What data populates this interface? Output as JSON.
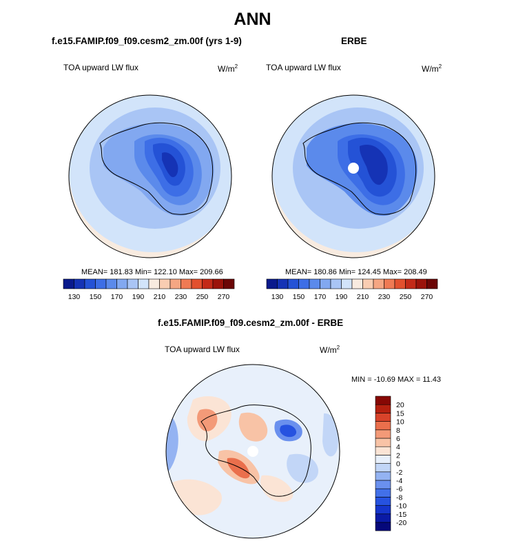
{
  "figure": {
    "title": "ANN",
    "panel1": {
      "title": "f.e15.FAMIP.f09_f09.cesm2_zm.00f (yrs 1-9)",
      "variable": "TOA upward LW flux",
      "units_base": "W/m",
      "units_exp": "2",
      "stats": "MEAN= 181.83  Min= 122.10  Max= 209.66"
    },
    "panel2": {
      "title": "ERBE",
      "variable": "TOA upward LW flux",
      "units_base": "W/m",
      "units_exp": "2",
      "stats": "MEAN= 180.86  Min= 124.45  Max= 208.49"
    },
    "panel3": {
      "title": "f.e15.FAMIP.f09_f09.cesm2_zm.00f - ERBE",
      "variable": "TOA upward LW flux",
      "units_base": "W/m",
      "units_exp": "2",
      "stats": "MIN = -10.69 MAX =  11.43"
    }
  },
  "chart_data": [
    {
      "type": "heatmap",
      "projection": "south-polar-stereographic",
      "title": "f.e15.FAMIP.f09_f09.cesm2_zm.00f (yrs 1-9)",
      "variable": "TOA upward LW flux",
      "units": "W/m2",
      "mean": 181.83,
      "min": 122.1,
      "max": 209.66,
      "colorbar_levels": [
        130,
        140,
        150,
        160,
        170,
        180,
        190,
        200,
        210,
        220,
        230,
        240,
        250,
        260,
        270
      ],
      "colorbar_tick_labels": [
        "130",
        "150",
        "170",
        "190",
        "210",
        "230",
        "250",
        "270"
      ],
      "colorbar_colors": [
        "#0a1a8c",
        "#1533b5",
        "#2452d6",
        "#3d6ee6",
        "#5b8aeb",
        "#82a8f0",
        "#a9c5f5",
        "#d2e4fa",
        "#f8ebe0",
        "#f9cdb2",
        "#f5a683",
        "#ef7a54",
        "#e2502e",
        "#c32a18",
        "#9b130b",
        "#6b0606"
      ],
      "colorbar_orientation": "horizontal"
    },
    {
      "type": "heatmap",
      "projection": "south-polar-stereographic",
      "title": "ERBE",
      "variable": "TOA upward LW flux",
      "units": "W/m2",
      "mean": 180.86,
      "min": 124.45,
      "max": 208.49,
      "colorbar_levels": [
        130,
        140,
        150,
        160,
        170,
        180,
        190,
        200,
        210,
        220,
        230,
        240,
        250,
        260,
        270
      ],
      "colorbar_tick_labels": [
        "130",
        "150",
        "170",
        "190",
        "210",
        "230",
        "250",
        "270"
      ],
      "colorbar_colors": [
        "#0a1a8c",
        "#1533b5",
        "#2452d6",
        "#3d6ee6",
        "#5b8aeb",
        "#82a8f0",
        "#a9c5f5",
        "#d2e4fa",
        "#f8ebe0",
        "#f9cdb2",
        "#f5a683",
        "#ef7a54",
        "#e2502e",
        "#c32a18",
        "#9b130b",
        "#6b0606"
      ],
      "colorbar_orientation": "horizontal"
    },
    {
      "type": "heatmap",
      "projection": "south-polar-stereographic",
      "title": "f.e15.FAMIP.f09_f09.cesm2_zm.00f - ERBE",
      "variable": "TOA upward LW flux",
      "units": "W/m2",
      "min": -10.69,
      "max": 11.43,
      "colorbar_levels": [
        -20,
        -15,
        -10,
        -8,
        -6,
        -4,
        -2,
        0,
        2,
        4,
        6,
        8,
        10,
        15,
        20
      ],
      "colorbar_tick_labels": [
        "-20",
        "-15",
        "-10",
        "-8",
        "-6",
        "-4",
        "-2",
        "0",
        "2",
        "4",
        "6",
        "8",
        "10",
        "15",
        "20"
      ],
      "colorbar_colors": [
        "#05087a",
        "#0a1aa6",
        "#1535cc",
        "#2652e0",
        "#4270e8",
        "#6a90ee",
        "#94b3f2",
        "#c2d6f7",
        "#e8f0fb",
        "#fbe4d5",
        "#f8c3a6",
        "#f39a78",
        "#ea6f4c",
        "#d8432a",
        "#b5200f",
        "#870804"
      ],
      "colorbar_orientation": "vertical"
    }
  ]
}
